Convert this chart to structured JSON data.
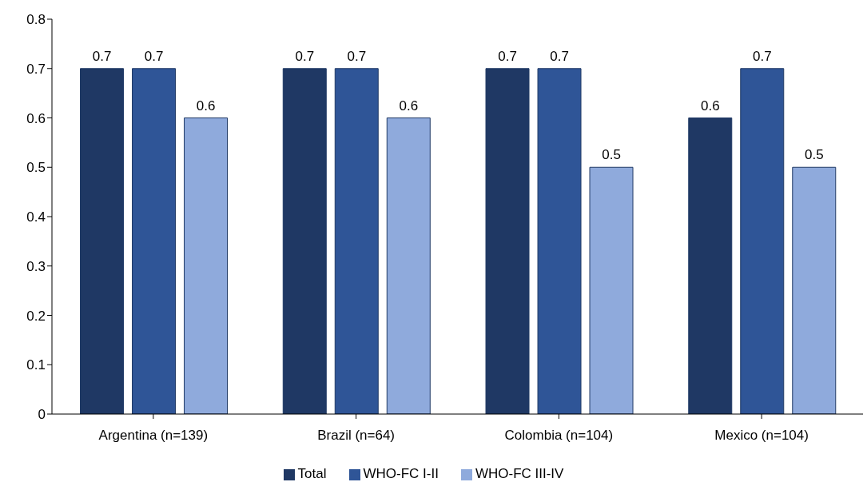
{
  "chart_data": {
    "type": "bar",
    "categories": [
      "Argentina (n=139)",
      "Brazil (n=64)",
      "Colombia (n=104)",
      "Mexico (n=104)"
    ],
    "series": [
      {
        "name": "Total",
        "color": "#1f3864",
        "values": [
          0.7,
          0.7,
          0.7,
          0.6
        ]
      },
      {
        "name": "WHO-FC I-II",
        "color": "#2f5597",
        "values": [
          0.7,
          0.7,
          0.7,
          0.7
        ]
      },
      {
        "name": "WHO-FC III-IV",
        "color": "#8faadc",
        "values": [
          0.6,
          0.6,
          0.5,
          0.5
        ]
      }
    ],
    "ylim": [
      0,
      0.8
    ],
    "yticks": [
      0,
      0.1,
      0.2,
      0.3,
      0.4,
      0.5,
      0.6,
      0.7,
      0.8
    ],
    "grid": false,
    "legend": "bottom",
    "data_labels": true
  }
}
